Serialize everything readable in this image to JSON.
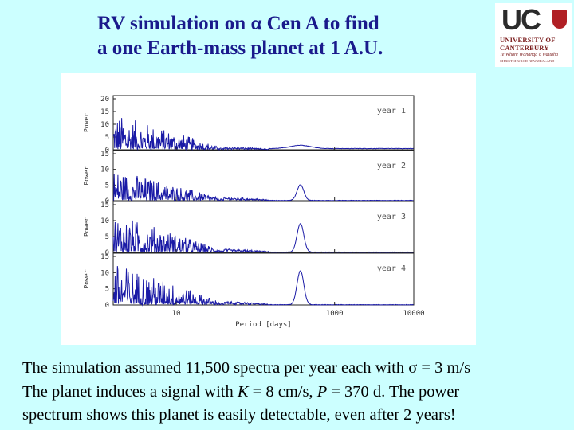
{
  "title": {
    "line1": "RV simulation on α Cen A to find",
    "line2": "a one Earth-mass planet at 1 A.U."
  },
  "logo": {
    "uc": "UC",
    "line1": "UNIVERSITY OF",
    "line2": "CANTERBURY",
    "line3": "Te Whare Wānanga o Waitaha",
    "line4": "CHRISTCHURCH NEW ZEALAND"
  },
  "caption": {
    "line1": "The simulation assumed 11,500 spectra per year each with σ = 3 m/s",
    "line2_pre": "The planet induces a signal with ",
    "line2_k": "K",
    "line2_mid": " = 8 cm/s, ",
    "line2_p": "P",
    "line2_post": " = 370 d. The power",
    "line3": "spectrum shows this planet is easily detectable, even after 2 years!"
  },
  "colors": {
    "background": "#ccffff",
    "title": "#1a1a8c",
    "line": "#1a1aa6"
  },
  "chart_data": {
    "type": "line",
    "xlabel": "Period [days]",
    "ylabel": "Power",
    "xscale": "log",
    "xlim": [
      1.6,
      10000
    ],
    "xticks": [
      "10",
      "1000",
      "10000"
    ],
    "panels": [
      {
        "label": "year 1",
        "ylim": [
          0,
          20
        ],
        "yticks": [
          "0",
          "5",
          "10",
          "15",
          "20"
        ],
        "peak_period": 370,
        "peak_power": 1.3,
        "noise_max": 14
      },
      {
        "label": "year 2",
        "ylim": [
          0,
          15
        ],
        "yticks": [
          "0",
          "5",
          "10",
          "15"
        ],
        "peak_period": 370,
        "peak_power": 5,
        "noise_max": 10
      },
      {
        "label": "year 3",
        "ylim": [
          0,
          15
        ],
        "yticks": [
          "0",
          "5",
          "10",
          "15"
        ],
        "peak_period": 370,
        "peak_power": 9,
        "noise_max": 12
      },
      {
        "label": "year 4",
        "ylim": [
          0,
          15
        ],
        "yticks": [
          "0",
          "5",
          "10",
          "15"
        ],
        "peak_period": 370,
        "peak_power": 10.5,
        "noise_max": 13
      }
    ]
  }
}
